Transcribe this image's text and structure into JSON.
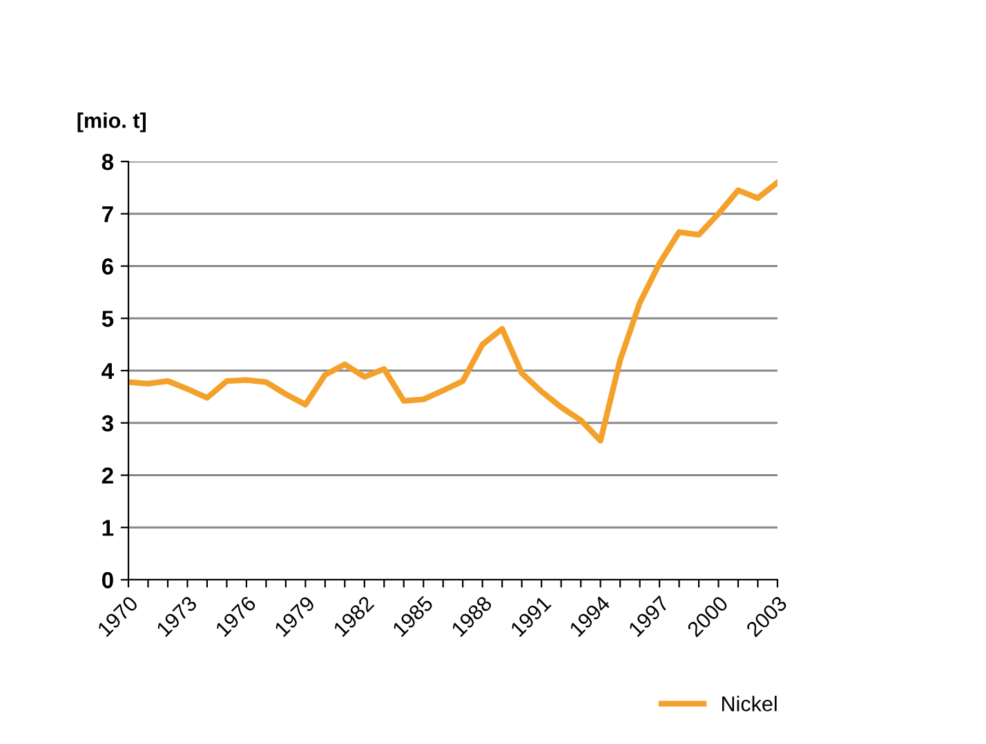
{
  "chart_data": {
    "type": "line",
    "ylabel": "[mio. t]",
    "x": [
      1970,
      1971,
      1972,
      1973,
      1974,
      1975,
      1976,
      1977,
      1978,
      1979,
      1980,
      1981,
      1982,
      1983,
      1984,
      1985,
      1986,
      1987,
      1988,
      1989,
      1990,
      1991,
      1992,
      1993,
      1994,
      1995,
      1996,
      1997,
      1998,
      1999,
      2000,
      2001,
      2002,
      2003
    ],
    "series": [
      {
        "name": "Nickel",
        "color": "#f4a12c",
        "values": [
          3.78,
          3.75,
          3.8,
          3.65,
          3.48,
          3.8,
          3.82,
          3.78,
          3.55,
          3.35,
          3.92,
          4.12,
          3.88,
          4.03,
          3.42,
          3.45,
          3.62,
          3.8,
          4.5,
          4.8,
          3.95,
          3.6,
          3.3,
          3.05,
          2.66,
          4.2,
          5.3,
          6.05,
          6.65,
          6.6,
          7.0,
          7.45,
          7.3,
          7.6
        ]
      }
    ],
    "xlim": [
      1970,
      2003
    ],
    "xticks": [
      1970,
      {
        "value": 1971,
        "label": null
      },
      {
        "value": 1972,
        "label": null
      },
      1973,
      {
        "value": 1974,
        "label": null
      },
      {
        "value": 1975,
        "label": null
      },
      1976,
      {
        "value": 1977,
        "label": null
      },
      {
        "value": 1978,
        "label": null
      },
      1979,
      {
        "value": 1980,
        "label": null
      },
      {
        "value": 1981,
        "label": null
      },
      1982,
      {
        "value": 1983,
        "label": null
      },
      {
        "value": 1984,
        "label": null
      },
      1985,
      {
        "value": 1986,
        "label": null
      },
      {
        "value": 1987,
        "label": null
      },
      1988,
      {
        "value": 1989,
        "label": null
      },
      {
        "value": 1990,
        "label": null
      },
      1991,
      {
        "value": 1992,
        "label": null
      },
      {
        "value": 1993,
        "label": null
      },
      1994,
      {
        "value": 1995,
        "label": null
      },
      {
        "value": 1996,
        "label": null
      },
      1997,
      {
        "value": 1998,
        "label": null
      },
      {
        "value": 1999,
        "label": null
      },
      2000,
      {
        "value": 2001,
        "label": null
      },
      {
        "value": 2002,
        "label": null
      },
      2003
    ],
    "ylim": [
      0,
      8
    ],
    "yticks": [
      0,
      1,
      2,
      3,
      4,
      5,
      6,
      7,
      8
    ],
    "grid": "y",
    "legend": "bottom right",
    "marker": "none",
    "line_style": "solid"
  }
}
